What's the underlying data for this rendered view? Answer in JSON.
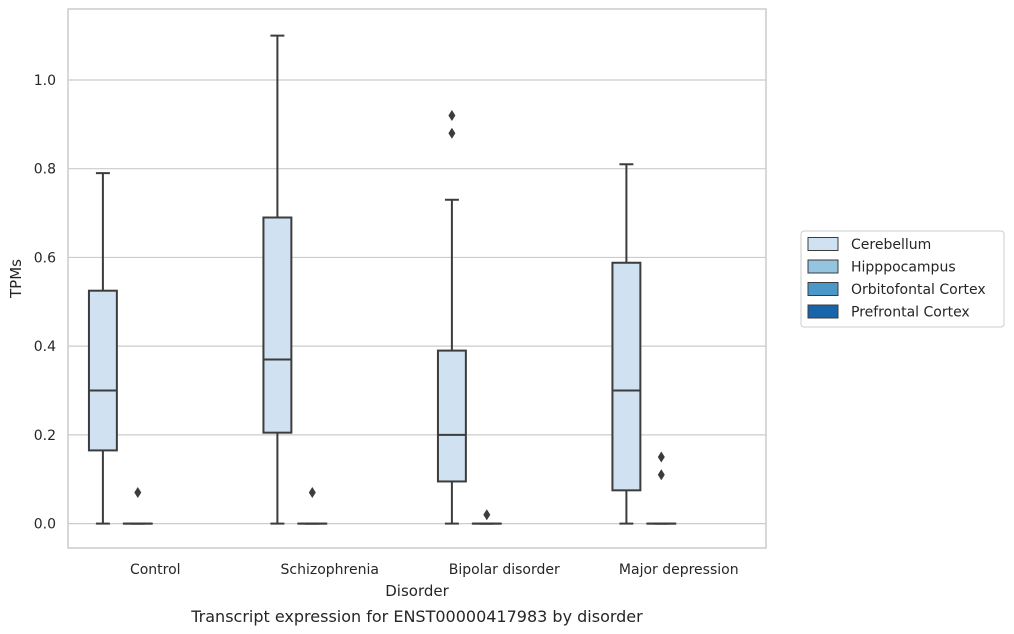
{
  "caption": "Transcript expression for ENST00000417983 by disorder",
  "chart_data": {
    "type": "box",
    "xlabel": "Disorder",
    "ylabel": "TPMs",
    "categories": [
      "Control",
      "Schizophrenia",
      "Bipolar disorder",
      "Major depression"
    ],
    "ylim": [
      -0.055,
      1.16
    ],
    "yticks": [
      0.0,
      0.2,
      0.4,
      0.6,
      0.8,
      1.0
    ],
    "ytick_labels": [
      "0.0",
      "0.2",
      "0.4",
      "0.6",
      "0.8",
      "1.0"
    ],
    "grid": true,
    "legend_position": "right",
    "series": [
      {
        "name": "Cerebellum",
        "color": "#d0e1f2",
        "boxes": [
          {
            "whislo": 0.0,
            "q1": 0.165,
            "med": 0.3,
            "q3": 0.525,
            "whishi": 0.79,
            "fliers": []
          },
          {
            "whislo": 0.0,
            "q1": 0.205,
            "med": 0.37,
            "q3": 0.69,
            "whishi": 1.1,
            "fliers": []
          },
          {
            "whislo": 0.0,
            "q1": 0.095,
            "med": 0.2,
            "q3": 0.39,
            "whishi": 0.73,
            "fliers": [
              0.88,
              0.92
            ]
          },
          {
            "whislo": 0.0,
            "q1": 0.075,
            "med": 0.3,
            "q3": 0.588,
            "whishi": 0.81,
            "fliers": []
          }
        ]
      },
      {
        "name": "Hipppocampus",
        "color": "#94c4df",
        "boxes": [
          {
            "whislo": 0.0,
            "q1": 0.0,
            "med": 0.0,
            "q3": 0.0,
            "whishi": 0.0,
            "fliers": [
              0.07
            ]
          },
          {
            "whislo": 0.0,
            "q1": 0.0,
            "med": 0.0,
            "q3": 0.0,
            "whishi": 0.0,
            "fliers": [
              0.07
            ]
          },
          {
            "whislo": 0.0,
            "q1": 0.0,
            "med": 0.0,
            "q3": 0.0,
            "whishi": 0.0,
            "fliers": [
              0.02
            ]
          },
          {
            "whislo": 0.0,
            "q1": 0.0,
            "med": 0.0,
            "q3": 0.0,
            "whishi": 0.0,
            "fliers": [
              0.15,
              0.11
            ]
          }
        ]
      },
      {
        "name": "Orbitofontal Cortex",
        "color": "#4a98c9",
        "boxes": []
      },
      {
        "name": "Prefrontal Cortex",
        "color": "#1764ab",
        "boxes": []
      }
    ]
  }
}
